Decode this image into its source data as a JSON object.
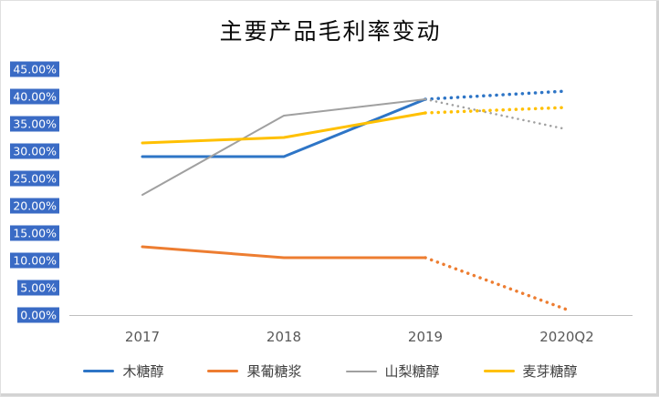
{
  "chart_data": {
    "type": "line",
    "title": "主要产品毛利率变动",
    "categories": [
      "2017",
      "2018",
      "2019",
      "2020Q2"
    ],
    "series": [
      {
        "name": "木糖醇",
        "color": "#2E75C6",
        "width": 3,
        "values": [
          29.0,
          29.0,
          39.5,
          41.0
        ]
      },
      {
        "name": "果葡糖浆",
        "color": "#ED7D31",
        "width": 3,
        "values": [
          12.5,
          10.5,
          10.5,
          1.0
        ]
      },
      {
        "name": "山梨糖醇",
        "color": "#A0A0A0",
        "width": 2,
        "values": [
          22.0,
          36.5,
          39.5,
          34.0
        ]
      },
      {
        "name": "麦芽糖醇",
        "color": "#FFC000",
        "width": 3,
        "values": [
          31.5,
          32.5,
          37.0,
          38.0
        ]
      }
    ],
    "solid_through_index": 2,
    "projection_style": "dotted after 2019",
    "ylim": [
      0,
      45
    ],
    "y_ticks": [
      "45.00%",
      "40.00%",
      "35.00%",
      "30.00%",
      "25.00%",
      "20.00%",
      "15.00%",
      "10.00%",
      "5.00%",
      "0.00%"
    ],
    "y_tick_values": [
      45,
      40,
      35,
      30,
      25,
      20,
      15,
      10,
      5,
      0
    ],
    "y_tick_highlight_color": "#3A6BC5",
    "axis_color": "#BFBFBF",
    "grid": false,
    "legend_position": "bottom",
    "xlabel": "",
    "ylabel": ""
  }
}
